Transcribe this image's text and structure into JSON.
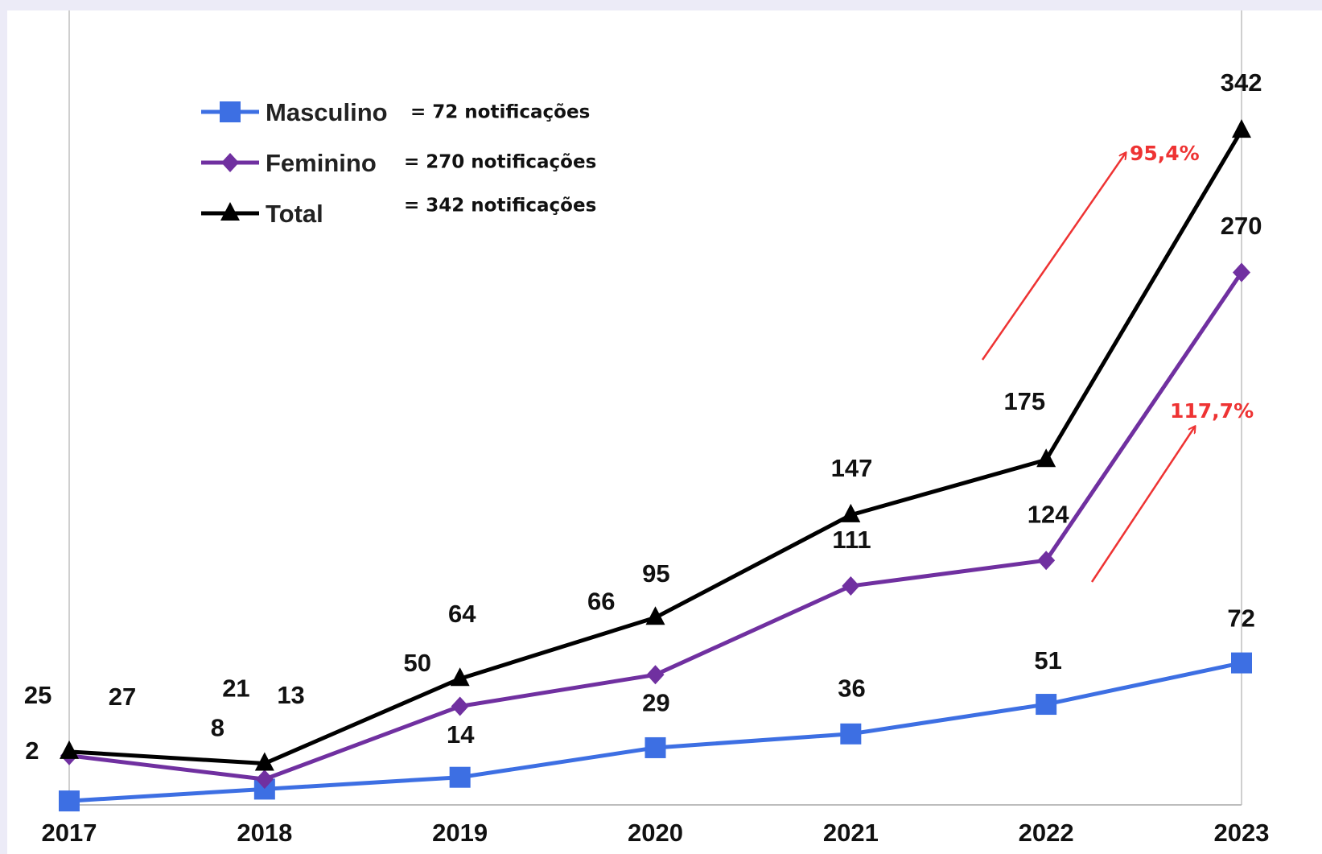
{
  "chart_data": {
    "type": "line",
    "categories": [
      "2017",
      "2018",
      "2019",
      "2020",
      "2021",
      "2022",
      "2023"
    ],
    "series": [
      {
        "name": "Masculino",
        "color": "#3d6fe3",
        "marker": "square",
        "values": [
          2,
          8,
          14,
          29,
          36,
          51,
          72
        ]
      },
      {
        "name": "Feminino",
        "color": "#7030a0",
        "marker": "diamond",
        "values": [
          25,
          13,
          50,
          66,
          111,
          124,
          270
        ]
      },
      {
        "name": "Total",
        "color": "#000000",
        "marker": "triangle",
        "values": [
          27,
          21,
          64,
          95,
          147,
          175,
          342
        ]
      }
    ],
    "ylim": [
      0,
      360
    ],
    "annotations": [
      "= 72 notificações",
      "= 270 notificações",
      "= 342 notificações",
      "95,4%",
      "117,7%"
    ]
  }
}
